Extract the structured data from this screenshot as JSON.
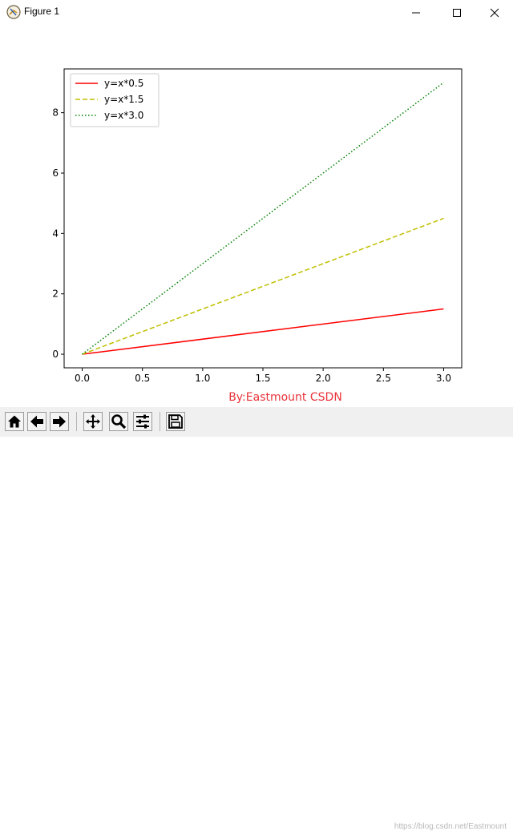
{
  "window": {
    "title": "Figure 1",
    "icons": [
      "figure-app-icon",
      "minimize-icon",
      "maximize-icon",
      "close-icon"
    ]
  },
  "figure": {
    "caption": "By:Eastmount CSDN",
    "caption_color": "#e8333a"
  },
  "chart_data": {
    "type": "line",
    "x": [
      0.0,
      3.0
    ],
    "series": [
      {
        "name": "y=x*0.5",
        "values": [
          0.0,
          1.5
        ],
        "color": "#ff0000",
        "style": "solid"
      },
      {
        "name": "y=x*1.5",
        "values": [
          0.0,
          4.5
        ],
        "color": "#bfbf00",
        "style": "dashed"
      },
      {
        "name": "y=x*3.0",
        "values": [
          0.0,
          9.0
        ],
        "color": "#008000",
        "style": "dotted"
      }
    ],
    "xticks": [
      "0.0",
      "0.5",
      "1.0",
      "1.5",
      "2.0",
      "2.5",
      "3.0"
    ],
    "yticks": [
      "0",
      "2",
      "4",
      "6",
      "8"
    ],
    "xlim": [
      -0.15,
      3.15
    ],
    "ylim": [
      -0.45,
      9.45
    ],
    "grid": false,
    "legend_position": "top-left"
  },
  "toolbar": {
    "buttons": [
      "home-icon",
      "back-icon",
      "forward-icon",
      "pan-icon",
      "zoom-icon",
      "configure-subplots-icon",
      "save-icon"
    ]
  },
  "watermark": "https://blog.csdn.net/Eastmount"
}
